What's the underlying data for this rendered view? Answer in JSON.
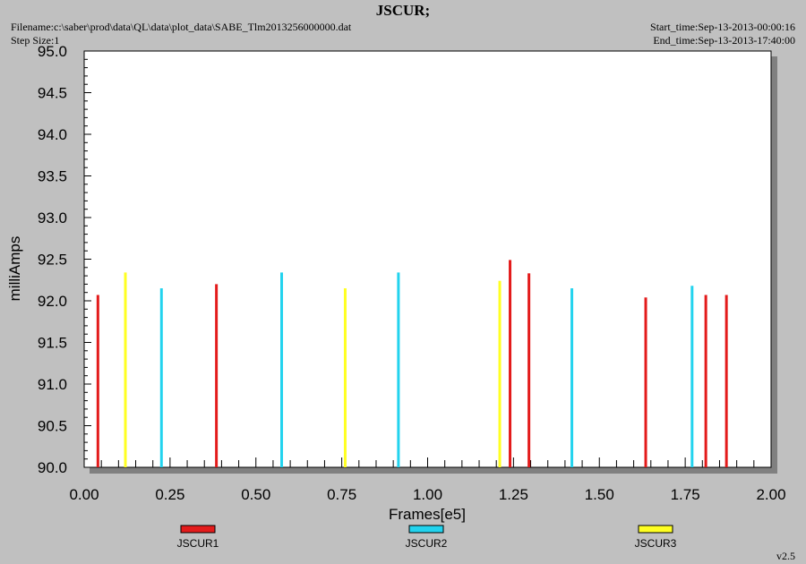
{
  "header": {
    "title": "JSCUR;",
    "filename": "Filename:c:\\saber\\prod\\data\\QL\\data\\plot_data\\SABE_Tlm2013256000000.dat",
    "step_size": "Step Size:1",
    "start_time": "Start_time:Sep-13-2013-00:00:16",
    "end_time": "End_time:Sep-13-2013-17:40:00"
  },
  "footer": {
    "version": "v2.5"
  },
  "chart_data": {
    "type": "bar",
    "title": "JSCUR;",
    "xlabel": "Frames[e5]",
    "ylabel": "milliAmps",
    "xlim": [
      0,
      2.0
    ],
    "ylim": [
      90.0,
      95.0
    ],
    "x_ticks": [
      "0.00",
      "0.25",
      "0.50",
      "0.75",
      "1.00",
      "1.25",
      "1.50",
      "1.75",
      "2.00"
    ],
    "y_ticks": [
      "90.0",
      "90.5",
      "91.0",
      "91.5",
      "92.0",
      "92.5",
      "93.0",
      "93.5",
      "94.0",
      "94.5",
      "95.0"
    ],
    "legend_position": "bottom",
    "series": [
      {
        "name": "JSCUR1",
        "color": "#e31b1b",
        "points": [
          [
            0.04,
            92.07
          ],
          [
            0.385,
            92.2
          ],
          [
            1.24,
            92.49
          ],
          [
            1.295,
            92.33
          ],
          [
            1.635,
            92.04
          ],
          [
            1.81,
            92.07
          ],
          [
            1.87,
            92.07
          ]
        ]
      },
      {
        "name": "JSCUR2",
        "color": "#22d3ee",
        "points": [
          [
            0.225,
            92.15
          ],
          [
            0.575,
            92.34
          ],
          [
            0.915,
            92.34
          ],
          [
            1.42,
            92.15
          ],
          [
            1.77,
            92.18
          ]
        ]
      },
      {
        "name": "JSCUR3",
        "color": "#ffff22",
        "points": [
          [
            0.12,
            92.34
          ],
          [
            0.76,
            92.15
          ],
          [
            1.21,
            92.24
          ]
        ]
      }
    ]
  }
}
